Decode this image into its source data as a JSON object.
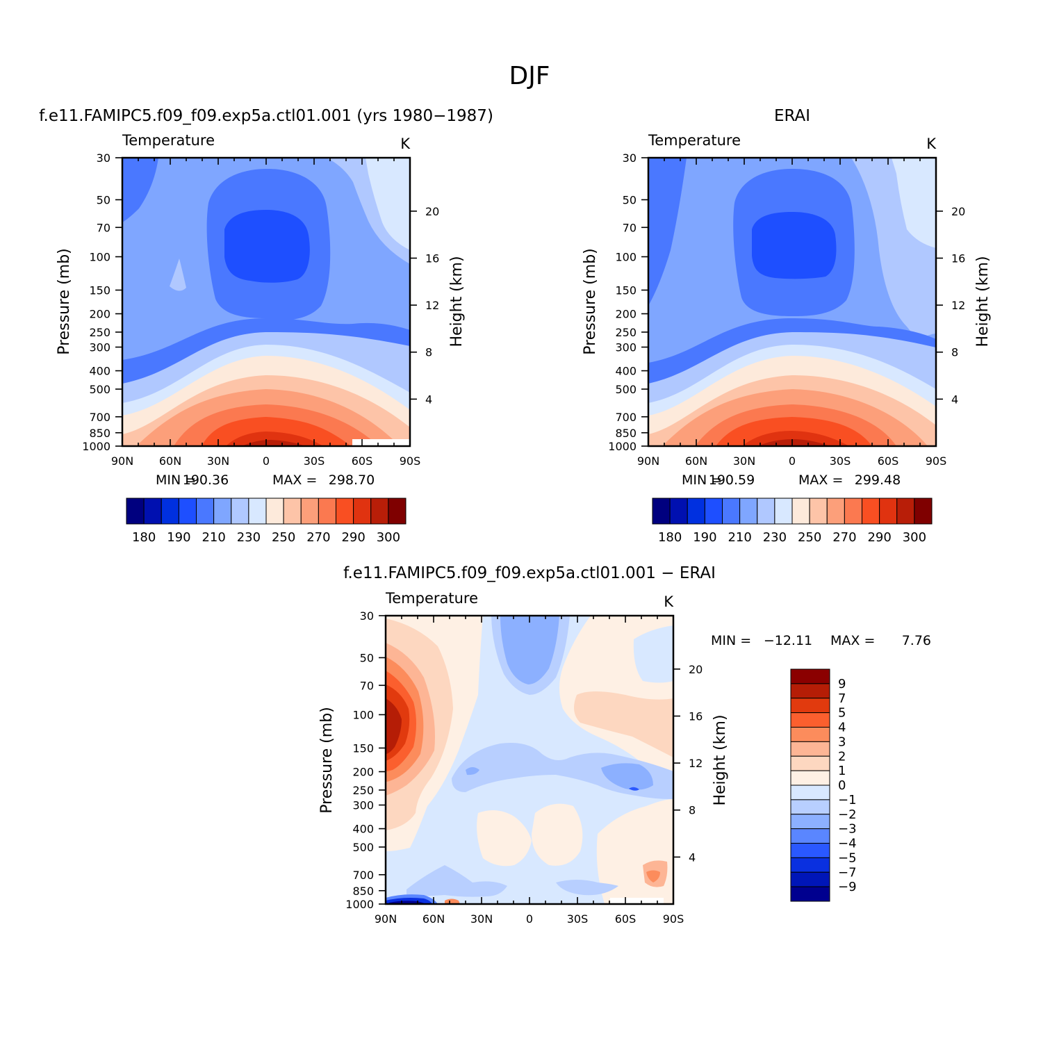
{
  "figure": {
    "season": "DJF",
    "diff_title": "f.e11.FAMIPC5.f09_f09.exp5a.ctl01.001  −  ERAI"
  },
  "chart_data": [
    {
      "type": "heatmap",
      "title": "f.e11.FAMIPC5.f09_f09.exp5a.ctl01.001 (yrs 1980−1987)",
      "variable": "Temperature",
      "units": "K",
      "xlabel": "",
      "ylabel": "Pressure (mb)",
      "ylabel_right": "Height (km)",
      "x_ticks": [
        "90N",
        "60N",
        "30N",
        "0",
        "30S",
        "60S",
        "90S"
      ],
      "y_ticks": [
        30,
        50,
        70,
        100,
        150,
        200,
        250,
        300,
        400,
        500,
        700,
        850,
        1000
      ],
      "y_scale": "log",
      "ylim": [
        1000,
        30
      ],
      "right_ticks": [
        20,
        16,
        12,
        8,
        4
      ],
      "stat_min": "190.36",
      "stat_max": "298.70",
      "colorbar_orientation": "horizontal",
      "colorbar_labels": [
        "180",
        "190",
        "210",
        "230",
        "250",
        "270",
        "290",
        "300"
      ],
      "colors": [
        "#00007f",
        "#0010b0",
        "#0030e0",
        "#1e4fff",
        "#4a78ff",
        "#7fa6ff",
        "#b0c8ff",
        "#d8e8ff",
        "#fdeadb",
        "#fdc4a8",
        "#fc9f7a",
        "#fb7950",
        "#f94f22",
        "#e03310",
        "#b81e08",
        "#7f0000"
      ]
    },
    {
      "type": "heatmap",
      "title": "ERAI",
      "variable": "Temperature",
      "units": "K",
      "xlabel": "",
      "ylabel": "Pressure (mb)",
      "ylabel_right": "Height (km)",
      "x_ticks": [
        "90N",
        "60N",
        "30N",
        "0",
        "30S",
        "60S",
        "90S"
      ],
      "y_ticks": [
        30,
        50,
        70,
        100,
        150,
        200,
        250,
        300,
        400,
        500,
        700,
        850,
        1000
      ],
      "y_scale": "log",
      "ylim": [
        1000,
        30
      ],
      "right_ticks": [
        20,
        16,
        12,
        8,
        4
      ],
      "stat_min": "190.59",
      "stat_max": "299.48",
      "colorbar_orientation": "horizontal",
      "colorbar_labels": [
        "180",
        "190",
        "210",
        "230",
        "250",
        "270",
        "290",
        "300"
      ],
      "colors": [
        "#00007f",
        "#0010b0",
        "#0030e0",
        "#1e4fff",
        "#4a78ff",
        "#7fa6ff",
        "#b0c8ff",
        "#d8e8ff",
        "#fdeadb",
        "#fdc4a8",
        "#fc9f7a",
        "#fb7950",
        "#f94f22",
        "#e03310",
        "#b81e08",
        "#7f0000"
      ]
    },
    {
      "type": "heatmap",
      "title": "f.e11.FAMIPC5.f09_f09.exp5a.ctl01.001  −  ERAI",
      "variable": "Temperature",
      "units": "K",
      "xlabel": "",
      "ylabel": "Pressure (mb)",
      "ylabel_right": "Height (km)",
      "x_ticks": [
        "90N",
        "60N",
        "30N",
        "0",
        "30S",
        "60S",
        "90S"
      ],
      "y_ticks": [
        30,
        50,
        70,
        100,
        150,
        200,
        250,
        300,
        400,
        500,
        700,
        850,
        1000
      ],
      "y_scale": "log",
      "ylim": [
        1000,
        30
      ],
      "right_ticks": [
        20,
        16,
        12,
        8,
        4
      ],
      "stat_min": "−12.11",
      "stat_max": "7.76",
      "colorbar_orientation": "vertical",
      "colorbar_labels": [
        "9",
        "7",
        "5",
        "4",
        "3",
        "2",
        "1",
        "0",
        "−1",
        "−2",
        "−3",
        "−4",
        "−5",
        "−7",
        "−9"
      ],
      "colors": [
        "#8b0000",
        "#b51d06",
        "#e13a0e",
        "#fb5f2e",
        "#fc8c5c",
        "#fdb595",
        "#fdd7c0",
        "#fef0e4",
        "#d8e8ff",
        "#b8cfff",
        "#8cb0ff",
        "#5a86ff",
        "#2a58ff",
        "#0a30e0",
        "#0016b8",
        "#00008f"
      ]
    }
  ]
}
